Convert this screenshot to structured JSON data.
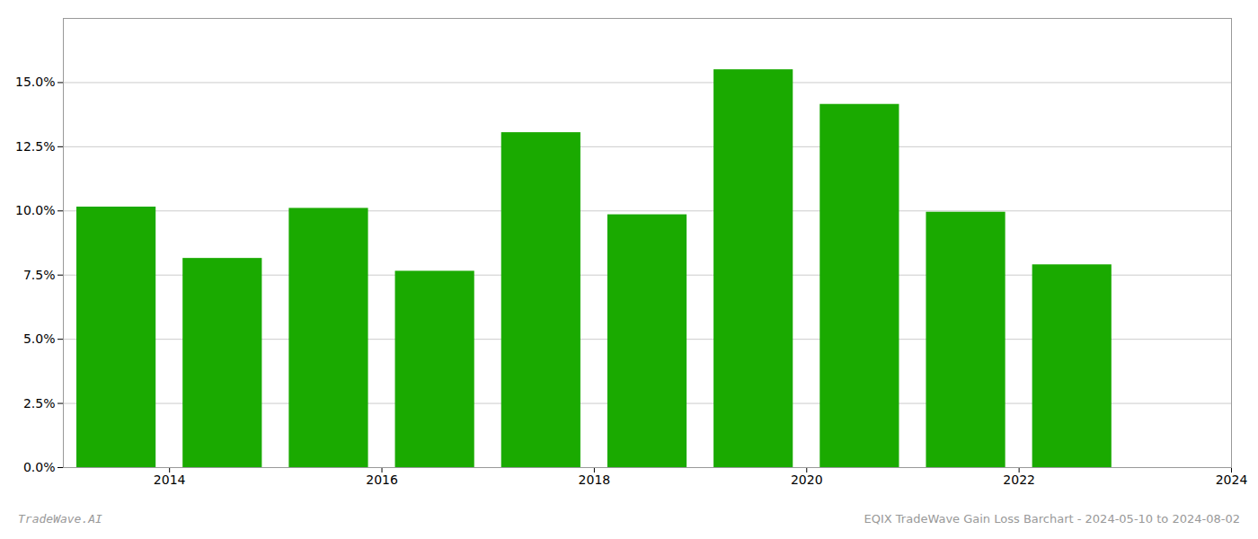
{
  "chart_data": {
    "type": "bar",
    "title": "EQIX TradeWave Gain Loss Barchart - 2024-05-10 to 2024-08-02",
    "annotations": [
      "TradeWave.AI"
    ],
    "x": [
      2013,
      2014,
      2015,
      2016,
      2017,
      2018,
      2019,
      2020,
      2021,
      2022,
      2023
    ],
    "values": [
      0.1015,
      0.0815,
      0.101,
      0.0765,
      0.1305,
      0.0985,
      0.155,
      0.1415,
      0.0995,
      0.079,
      0.0
    ],
    "color": "#1AAA00",
    "xlim": [
      2013,
      2024
    ],
    "xticks": [
      2014,
      2016,
      2018,
      2020,
      2022,
      2024
    ],
    "ylim": [
      0,
      0.175
    ],
    "yticks": [
      {
        "value": 0.0,
        "label": "0.0%"
      },
      {
        "value": 0.025,
        "label": "2.5%"
      },
      {
        "value": 0.05,
        "label": "5.0%"
      },
      {
        "value": 0.075,
        "label": "7.5%"
      },
      {
        "value": 0.1,
        "label": "10.0%"
      },
      {
        "value": 0.125,
        "label": "12.5%"
      },
      {
        "value": 0.15,
        "label": "15.0%"
      }
    ],
    "grid": true
  }
}
